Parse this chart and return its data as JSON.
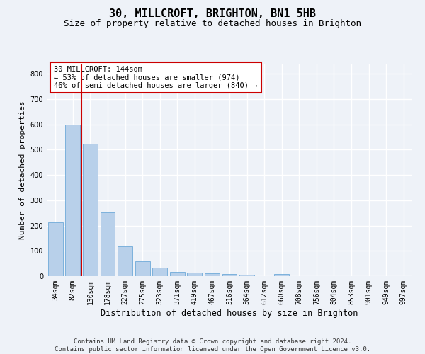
{
  "title": "30, MILLCROFT, BRIGHTON, BN1 5HB",
  "subtitle": "Size of property relative to detached houses in Brighton",
  "xlabel": "Distribution of detached houses by size in Brighton",
  "ylabel": "Number of detached properties",
  "categories": [
    "34sqm",
    "82sqm",
    "130sqm",
    "178sqm",
    "227sqm",
    "275sqm",
    "323sqm",
    "371sqm",
    "419sqm",
    "467sqm",
    "516sqm",
    "564sqm",
    "612sqm",
    "660sqm",
    "708sqm",
    "756sqm",
    "804sqm",
    "853sqm",
    "901sqm",
    "949sqm",
    "997sqm"
  ],
  "values": [
    213,
    600,
    525,
    253,
    117,
    58,
    33,
    18,
    15,
    12,
    8,
    5,
    0,
    8,
    0,
    0,
    0,
    0,
    0,
    0,
    0
  ],
  "bar_color": "#b8d0ea",
  "bar_edgecolor": "#5a9fd4",
  "vline_color": "#cc0000",
  "annotation_text": "30 MILLCROFT: 144sqm\n← 53% of detached houses are smaller (974)\n46% of semi-detached houses are larger (840) →",
  "annotation_box_facecolor": "#ffffff",
  "annotation_box_edgecolor": "#cc0000",
  "ylim": [
    0,
    840
  ],
  "yticks": [
    0,
    100,
    200,
    300,
    400,
    500,
    600,
    700,
    800
  ],
  "footer_line1": "Contains HM Land Registry data © Crown copyright and database right 2024.",
  "footer_line2": "Contains public sector information licensed under the Open Government Licence v3.0.",
  "bg_color": "#eef2f8",
  "plot_bg_color": "#eef2f8",
  "grid_color": "#ffffff",
  "title_fontsize": 11,
  "subtitle_fontsize": 9,
  "xlabel_fontsize": 8.5,
  "ylabel_fontsize": 8,
  "tick_fontsize": 7,
  "annotation_fontsize": 7.5,
  "footer_fontsize": 6.5
}
